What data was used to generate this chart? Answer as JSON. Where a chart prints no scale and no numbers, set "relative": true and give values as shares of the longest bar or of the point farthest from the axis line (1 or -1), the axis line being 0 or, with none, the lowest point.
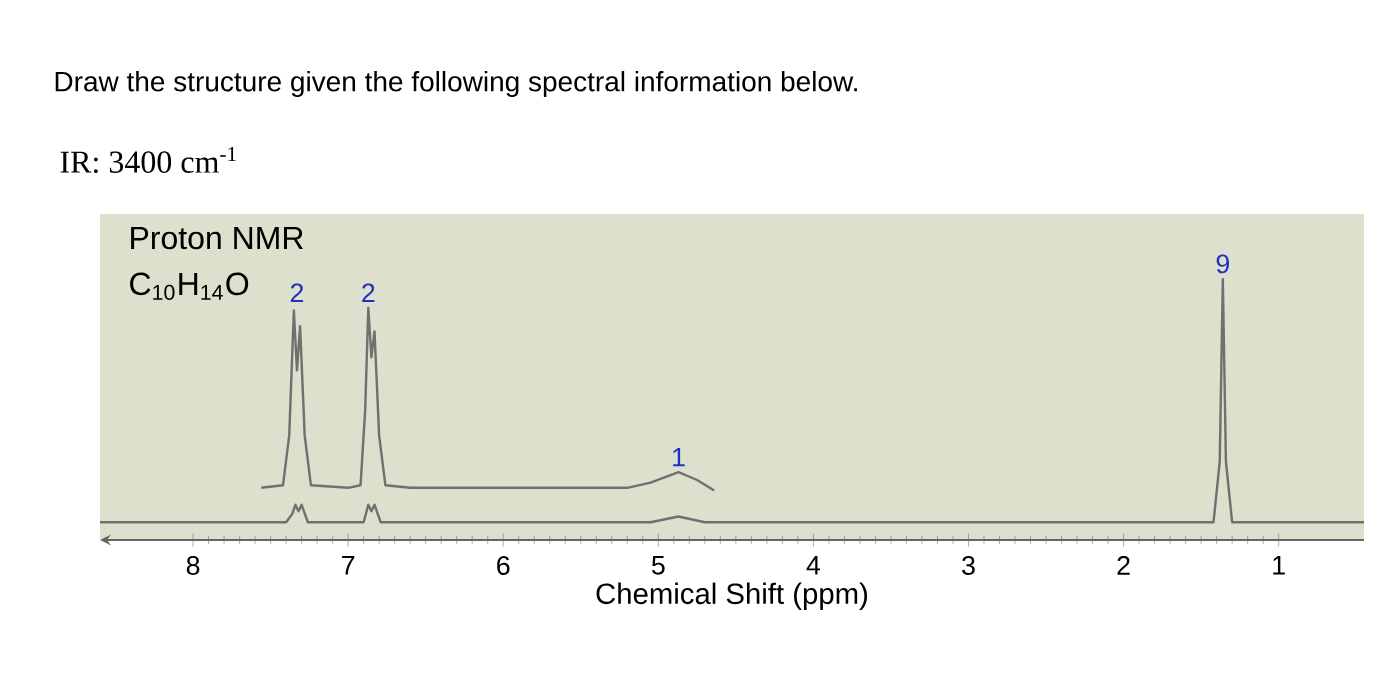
{
  "chart_data": {
    "type": "line",
    "relative": true,
    "title": "Draw the structure given the following spectral information below.",
    "xlabel": "Chemical Shift (ppm)",
    "xlim": [
      8.6,
      0.45
    ],
    "xticks": [
      8,
      7,
      6,
      5,
      4,
      3,
      2,
      1
    ],
    "marker": "none",
    "annotations": [
      "IR: 3400 cm$^{-1}$",
      "Proton NMR",
      "C$_{10}$H$_{14}$O",
      {
        "text": "2",
        "x": 7.33,
        "y": 0.89
      },
      {
        "text": "2",
        "x": 6.87,
        "y": 0.89
      },
      {
        "text": "1",
        "x": 4.87,
        "y": 0.26
      },
      {
        "text": "9",
        "x": 1.36,
        "y": 1.0
      }
    ],
    "series": [
      {
        "color": "#707070",
        "x": [
          8.6,
          7.4,
          7.36,
          7.34,
          7.32,
          7.3,
          7.26,
          6.9,
          6.87,
          6.85,
          6.83,
          6.79,
          5.05,
          4.87,
          4.7,
          1.42,
          1.38,
          1.36,
          1.34,
          1.3,
          0.45
        ],
        "values": [
          0.068,
          0.068,
          0.1,
          0.135,
          0.11,
          0.135,
          0.068,
          0.068,
          0.135,
          0.11,
          0.135,
          0.068,
          0.068,
          0.09,
          0.068,
          0.068,
          0.3,
          1.0,
          0.3,
          0.068,
          0.068
        ]
      },
      {
        "color": "#707070",
        "x": [
          7.56,
          7.42,
          7.38,
          7.35,
          7.33,
          7.31,
          7.28,
          7.24,
          7.0,
          6.92,
          6.89,
          6.87,
          6.85,
          6.83,
          6.8,
          6.76,
          6.6,
          5.2,
          5.05,
          4.87,
          4.75,
          4.64
        ],
        "values": [
          0.2,
          0.21,
          0.4,
          0.88,
          0.65,
          0.82,
          0.4,
          0.21,
          0.2,
          0.21,
          0.5,
          0.89,
          0.7,
          0.8,
          0.4,
          0.21,
          0.2,
          0.2,
          0.22,
          0.26,
          0.23,
          0.19
        ]
      }
    ]
  }
}
